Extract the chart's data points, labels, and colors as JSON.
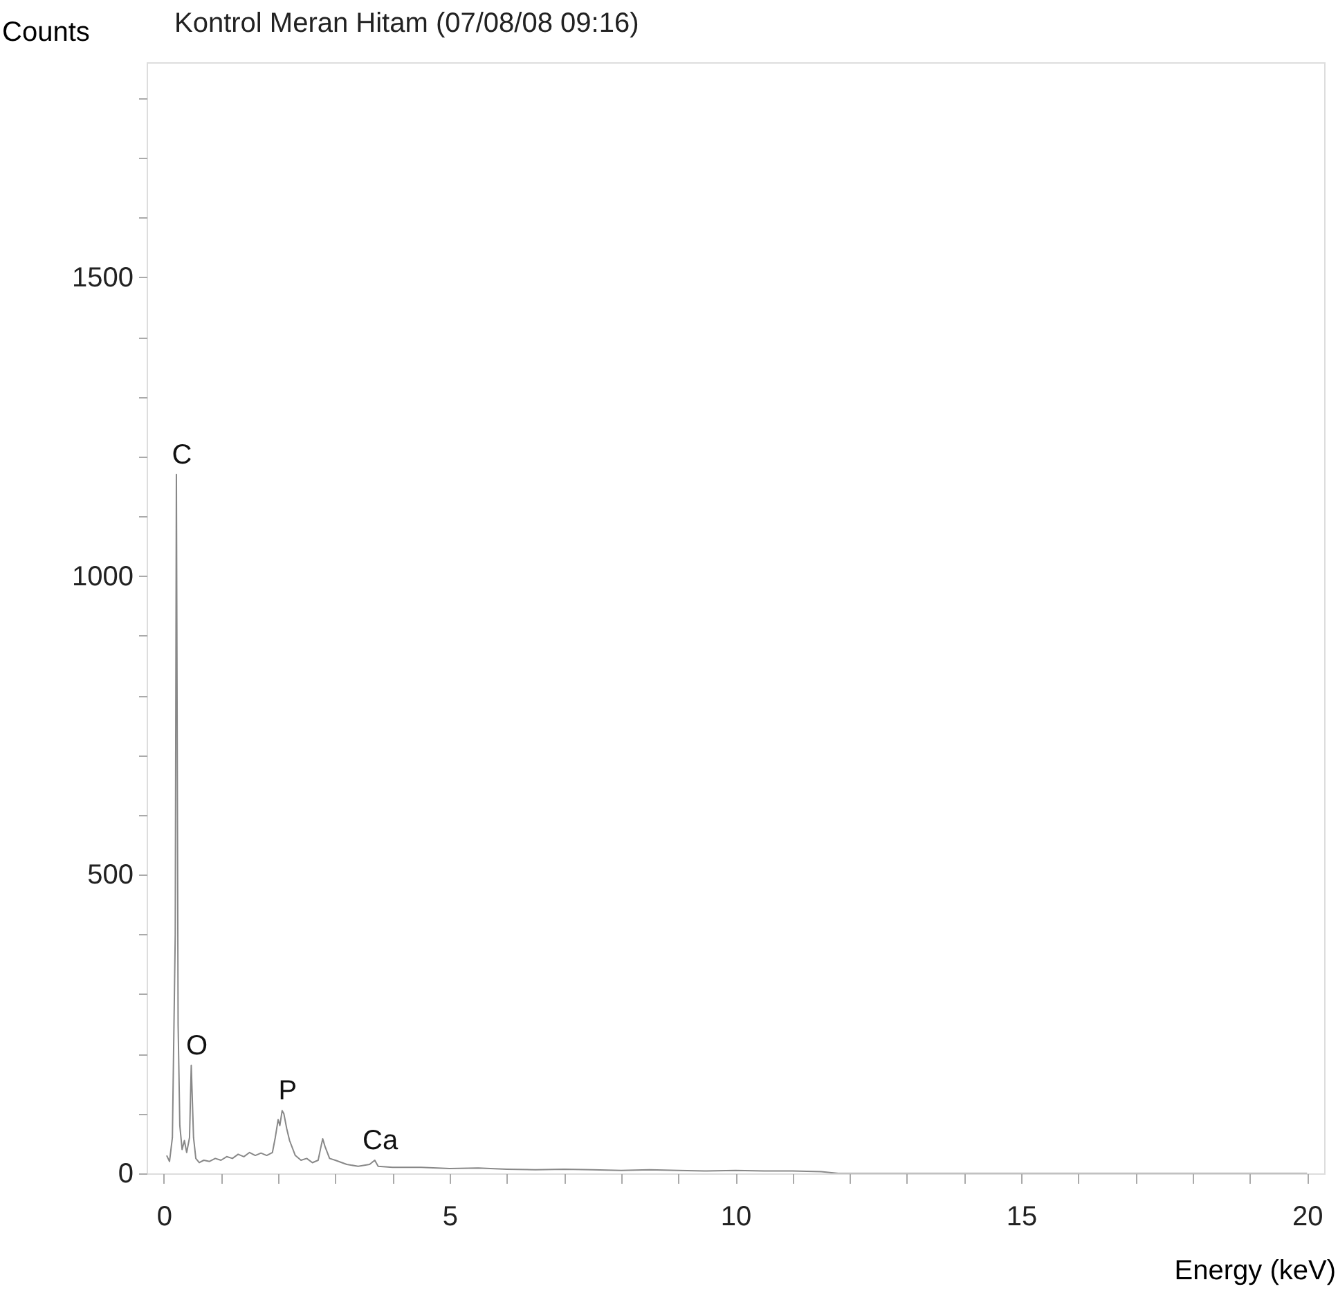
{
  "chart_data": {
    "type": "line",
    "title": "Kontrol Meran Hitam (07/08/08 09:16)",
    "xlabel": "Energy (keV)",
    "ylabel": "Counts",
    "xlim": [
      -0.3,
      20.3
    ],
    "ylim": [
      0,
      1860
    ],
    "xticks": [
      0,
      {
        "value": 1,
        "label": null
      },
      {
        "value": 2,
        "label": null
      },
      {
        "value": 3,
        "label": null
      },
      {
        "value": 4,
        "label": null
      },
      5,
      {
        "value": 6,
        "label": null
      },
      {
        "value": 7,
        "label": null
      },
      {
        "value": 8,
        "label": null
      },
      {
        "value": 9,
        "label": null
      },
      10,
      {
        "value": 11,
        "label": null
      },
      {
        "value": 12,
        "label": null
      },
      {
        "value": 13,
        "label": null
      },
      {
        "value": 14,
        "label": null
      },
      15,
      {
        "value": 16,
        "label": null
      },
      {
        "value": 17,
        "label": null
      },
      {
        "value": 18,
        "label": null
      },
      {
        "value": 19,
        "label": null
      },
      20
    ],
    "yticks": [
      0,
      {
        "value": 100,
        "label": null
      },
      {
        "value": 200,
        "label": null
      },
      {
        "value": 300,
        "label": null
      },
      {
        "value": 400,
        "label": null
      },
      500,
      {
        "value": 600,
        "label": null
      },
      {
        "value": 700,
        "label": null
      },
      {
        "value": 800,
        "label": null
      },
      {
        "value": 900,
        "label": null
      },
      1000,
      {
        "value": 1100,
        "label": null
      },
      {
        "value": 1200,
        "label": null
      },
      {
        "value": 1300,
        "label": null
      },
      {
        "value": 1400,
        "label": null
      },
      1500,
      {
        "value": 1600,
        "label": null
      },
      {
        "value": 1700,
        "label": null
      },
      {
        "value": 1800,
        "label": null
      }
    ],
    "grid": false,
    "marker": "none",
    "line_style": "solid",
    "series": [
      {
        "color": "#888888",
        "x": [
          0.05,
          0.1,
          0.15,
          0.2,
          0.22,
          0.25,
          0.28,
          0.32,
          0.36,
          0.4,
          0.45,
          0.48,
          0.52,
          0.56,
          0.62,
          0.7,
          0.8,
          0.9,
          1.0,
          1.1,
          1.2,
          1.3,
          1.4,
          1.5,
          1.6,
          1.7,
          1.8,
          1.9,
          1.95,
          2.0,
          2.03,
          2.07,
          2.1,
          2.15,
          2.2,
          2.3,
          2.4,
          2.5,
          2.6,
          2.7,
          2.75,
          2.78,
          2.82,
          2.9,
          3.0,
          3.2,
          3.4,
          3.6,
          3.69,
          3.75,
          4.0,
          4.5,
          5.0,
          5.5,
          6.0,
          6.5,
          7.0,
          7.5,
          8.0,
          8.5,
          9.0,
          9.5,
          10.0,
          10.5,
          11.0,
          11.5,
          11.8,
          20.0
        ],
        "values": [
          30,
          20,
          60,
          400,
          1170,
          250,
          80,
          40,
          55,
          35,
          60,
          181,
          60,
          25,
          18,
          22,
          20,
          25,
          22,
          28,
          25,
          32,
          28,
          35,
          30,
          34,
          30,
          35,
          60,
          90,
          80,
          105,
          100,
          75,
          55,
          30,
          22,
          25,
          18,
          22,
          45,
          58,
          45,
          25,
          22,
          15,
          12,
          15,
          22,
          12,
          10,
          10,
          8,
          9,
          7,
          6,
          7,
          6,
          5,
          6,
          5,
          4,
          5,
          4,
          4,
          3,
          0,
          0
        ]
      }
    ],
    "annotations": [
      {
        "text": "C",
        "x": 0.22,
        "y": 1170
      },
      {
        "text": "O",
        "x": 0.48,
        "y": 181
      },
      {
        "text": "P",
        "x": 2.07,
        "y": 105
      },
      {
        "text": "Ca",
        "x": 3.69,
        "y": 22
      }
    ]
  }
}
